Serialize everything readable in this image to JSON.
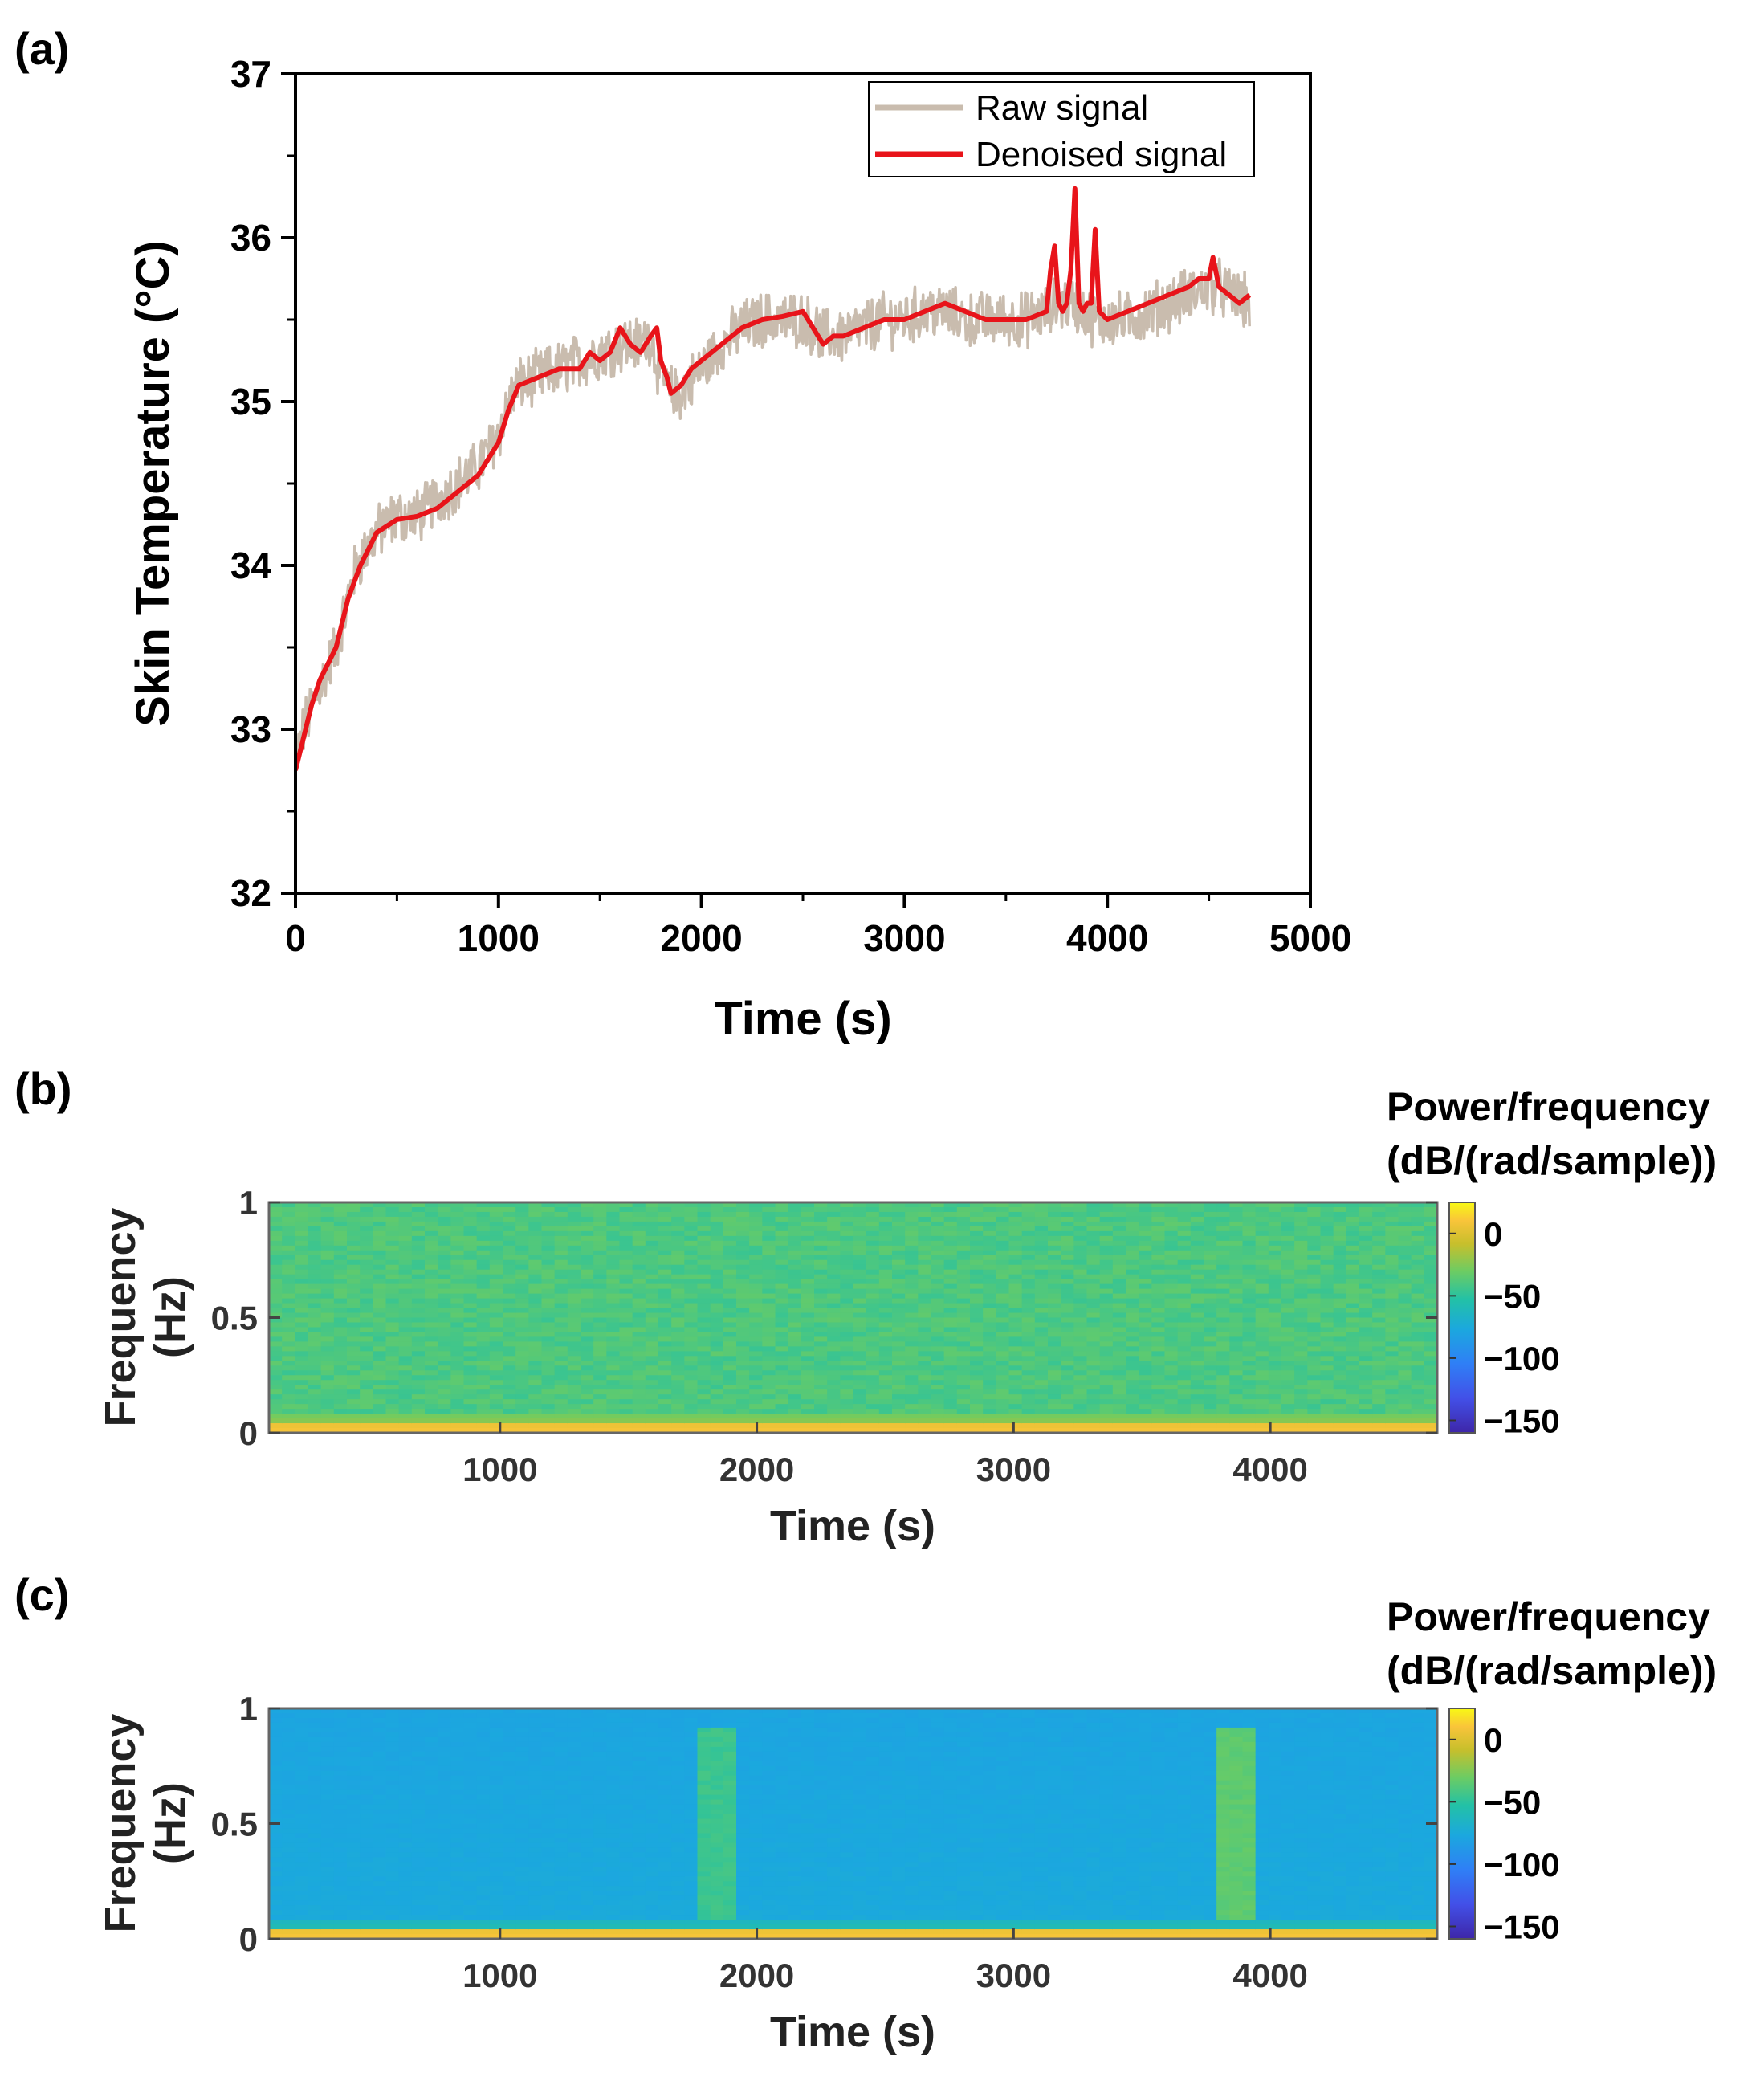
{
  "chart_data": [
    {
      "id": "a",
      "panel_label": "(a)",
      "type": "line",
      "xlabel": "Time (s)",
      "ylabel": "Skin Temperature (°C)",
      "xlim": [
        0,
        5000
      ],
      "ylim": [
        32,
        37
      ],
      "xticks": [
        0,
        1000,
        2000,
        3000,
        4000,
        5000
      ],
      "yticks": [
        32,
        33,
        34,
        35,
        36,
        37
      ],
      "legend_position": "top-right",
      "series": [
        {
          "name": "Raw signal",
          "color": "#c9bcae",
          "noise_amplitude": 0.15,
          "x": [
            0,
            40,
            100,
            200,
            300,
            400,
            500,
            600,
            700,
            800,
            900,
            1000,
            1050,
            1100,
            1200,
            1300,
            1400,
            1500,
            1600,
            1700,
            1750,
            1800,
            1850,
            1900,
            2000,
            2100,
            2200,
            2300,
            2400,
            2500,
            2600,
            2700,
            2800,
            2900,
            3000,
            3100,
            3200,
            3300,
            3400,
            3500,
            3600,
            3700,
            3750,
            3800,
            3840,
            3880,
            3940,
            4000,
            4100,
            4200,
            4300,
            4400,
            4500,
            4550,
            4600,
            4700
          ],
          "y": [
            32.8,
            33.0,
            33.2,
            33.5,
            34.0,
            34.2,
            34.3,
            34.3,
            34.4,
            34.5,
            34.6,
            34.8,
            35.0,
            35.1,
            35.15,
            35.2,
            35.25,
            35.3,
            35.35,
            35.35,
            35.4,
            35.15,
            35.05,
            35.05,
            35.2,
            35.35,
            35.45,
            35.5,
            35.5,
            35.5,
            35.4,
            35.4,
            35.45,
            35.5,
            35.5,
            35.55,
            35.55,
            35.5,
            35.5,
            35.5,
            35.5,
            35.55,
            35.6,
            35.6,
            35.6,
            35.55,
            35.5,
            35.5,
            35.5,
            35.55,
            35.6,
            35.65,
            35.7,
            35.7,
            35.65,
            35.6
          ]
        },
        {
          "name": "Denoised signal",
          "color": "#e8141a",
          "x": [
            0,
            40,
            80,
            120,
            200,
            260,
            320,
            400,
            500,
            600,
            700,
            800,
            850,
            900,
            1000,
            1050,
            1100,
            1200,
            1300,
            1400,
            1450,
            1500,
            1550,
            1600,
            1650,
            1700,
            1750,
            1780,
            1800,
            1830,
            1850,
            1900,
            1950,
            2000,
            2100,
            2200,
            2300,
            2400,
            2500,
            2550,
            2600,
            2650,
            2700,
            2800,
            2900,
            3000,
            3100,
            3200,
            3300,
            3400,
            3500,
            3600,
            3700,
            3720,
            3740,
            3760,
            3780,
            3800,
            3820,
            3840,
            3860,
            3880,
            3900,
            3920,
            3940,
            3960,
            4000,
            4100,
            4200,
            4300,
            4400,
            4450,
            4500,
            4520,
            4550,
            4600,
            4650,
            4700
          ],
          "y": [
            32.75,
            32.95,
            33.15,
            33.3,
            33.5,
            33.8,
            34.0,
            34.2,
            34.28,
            34.3,
            34.35,
            34.45,
            34.5,
            34.55,
            34.75,
            34.95,
            35.1,
            35.15,
            35.2,
            35.2,
            35.3,
            35.25,
            35.3,
            35.45,
            35.35,
            35.3,
            35.4,
            35.45,
            35.25,
            35.15,
            35.05,
            35.1,
            35.2,
            35.25,
            35.35,
            35.45,
            35.5,
            35.52,
            35.55,
            35.45,
            35.35,
            35.4,
            35.4,
            35.45,
            35.5,
            35.5,
            35.55,
            35.6,
            35.55,
            35.5,
            35.5,
            35.5,
            35.55,
            35.8,
            35.95,
            35.6,
            35.55,
            35.6,
            35.8,
            36.3,
            35.6,
            35.55,
            35.6,
            35.6,
            36.05,
            35.55,
            35.5,
            35.55,
            35.6,
            35.65,
            35.7,
            35.75,
            35.75,
            35.88,
            35.7,
            35.65,
            35.6,
            35.65
          ]
        }
      ]
    },
    {
      "id": "b",
      "panel_label": "(b)",
      "type": "heatmap",
      "xlabel": "Time (s)",
      "ylabel": "Frequency (Hz)",
      "ylabel_lines": [
        "Frequency",
        "(Hz)"
      ],
      "xlim": [
        100,
        4650
      ],
      "ylim": [
        0,
        1
      ],
      "xticks": [
        1000,
        2000,
        3000,
        4000
      ],
      "yticks": [
        0,
        0.5,
        1
      ],
      "colorbar": {
        "title_lines": [
          "Power/frequency",
          "(dB/(rad/sample))"
        ],
        "ticks": [
          0,
          -50,
          -100,
          -150
        ],
        "range": [
          -160,
          25
        ]
      },
      "description_values": {
        "background_db": -40,
        "dc_band_db": 10,
        "noise_db": 6
      }
    },
    {
      "id": "c",
      "panel_label": "(c)",
      "type": "heatmap",
      "xlabel": "Time (s)",
      "ylabel": "Frequency (Hz)",
      "ylabel_lines": [
        "Frequency",
        "(Hz)"
      ],
      "xlim": [
        100,
        4650
      ],
      "ylim": [
        0,
        1
      ],
      "xticks": [
        1000,
        2000,
        3000,
        4000
      ],
      "yticks": [
        0,
        0.5,
        1
      ],
      "colorbar": {
        "title_lines": [
          "Power/frequency",
          "(dB/(rad/sample))"
        ],
        "ticks": [
          0,
          -50,
          -100,
          -150
        ],
        "range": [
          -160,
          25
        ]
      },
      "description_values": {
        "background_db": -75,
        "dc_band_db": 10,
        "bursts": [
          {
            "t_start": 1750,
            "t_end": 1900,
            "db": -45
          },
          {
            "t_start": 3780,
            "t_end": 3920,
            "db": -35
          }
        ]
      }
    }
  ]
}
